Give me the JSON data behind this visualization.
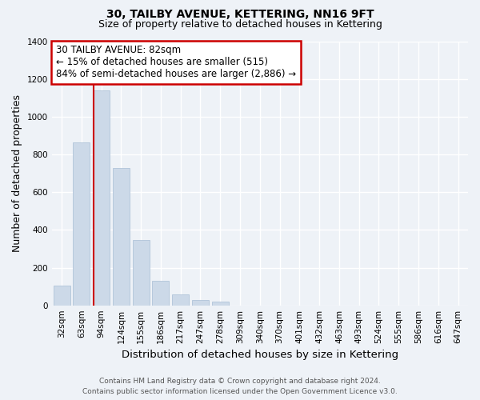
{
  "title": "30, TAILBY AVENUE, KETTERING, NN16 9FT",
  "subtitle": "Size of property relative to detached houses in Kettering",
  "xlabel": "Distribution of detached houses by size in Kettering",
  "ylabel": "Number of detached properties",
  "bar_labels": [
    "32sqm",
    "63sqm",
    "94sqm",
    "124sqm",
    "155sqm",
    "186sqm",
    "217sqm",
    "247sqm",
    "278sqm",
    "309sqm",
    "340sqm",
    "370sqm",
    "401sqm",
    "432sqm",
    "463sqm",
    "493sqm",
    "524sqm",
    "555sqm",
    "586sqm",
    "616sqm",
    "647sqm"
  ],
  "bar_values": [
    105,
    865,
    1140,
    730,
    345,
    130,
    60,
    30,
    18,
    0,
    0,
    0,
    0,
    0,
    0,
    0,
    0,
    0,
    0,
    0,
    0
  ],
  "bar_color": "#ccd9e8",
  "bar_edgecolor": "#a8bdd4",
  "annotation_title": "30 TAILBY AVENUE: 82sqm",
  "annotation_line1": "← 15% of detached houses are smaller (515)",
  "annotation_line2": "84% of semi-detached houses are larger (2,886) →",
  "annotation_border_color": "#cc0000",
  "ylim": [
    0,
    1400
  ],
  "yticks": [
    0,
    200,
    400,
    600,
    800,
    1000,
    1200,
    1400
  ],
  "redline_color": "#cc0000",
  "red_line_x": 1.62,
  "footer1": "Contains HM Land Registry data © Crown copyright and database right 2024.",
  "footer2": "Contains public sector information licensed under the Open Government Licence v3.0.",
  "bg_color": "#eef2f7",
  "plot_bg_color": "#eef2f7",
  "grid_color": "#ffffff",
  "title_fontsize": 10,
  "subtitle_fontsize": 9,
  "axis_label_fontsize": 9,
  "tick_fontsize": 7.5,
  "footer_fontsize": 6.5,
  "annotation_fontsize": 8.5
}
